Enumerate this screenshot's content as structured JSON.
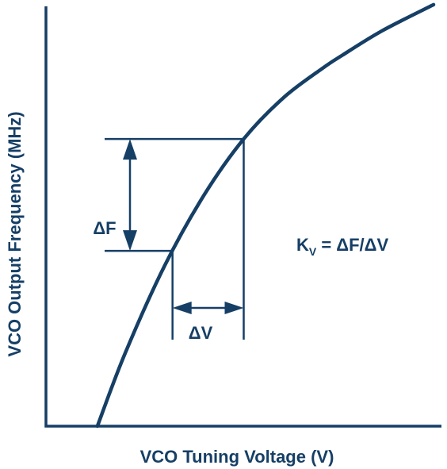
{
  "chart_data": {
    "type": "line",
    "title": "",
    "xlabel": "VCO Tuning Voltage (V)",
    "ylabel": "VCO Output Frequency (MHz)",
    "grid": false,
    "series": [
      {
        "x": [
          0.13,
          0.2,
          0.3,
          0.4,
          0.5,
          0.6,
          0.7,
          0.75,
          0.85,
          0.98
        ],
        "y": [
          0.0,
          0.195,
          0.43,
          0.62,
          0.77,
          0.88,
          0.96,
          0.995,
          1.06,
          1.13
        ]
      }
    ],
    "annotations": {
      "delta_f_label": "ΔF",
      "delta_v_label": "ΔV",
      "formula_lhs": "K",
      "formula_subscript": "V",
      "formula_rhs": " = ΔF/ΔV",
      "point_low": {
        "x": 0.32,
        "y": 0.47
      },
      "point_high": {
        "x": 0.5,
        "y": 0.77
      }
    }
  }
}
